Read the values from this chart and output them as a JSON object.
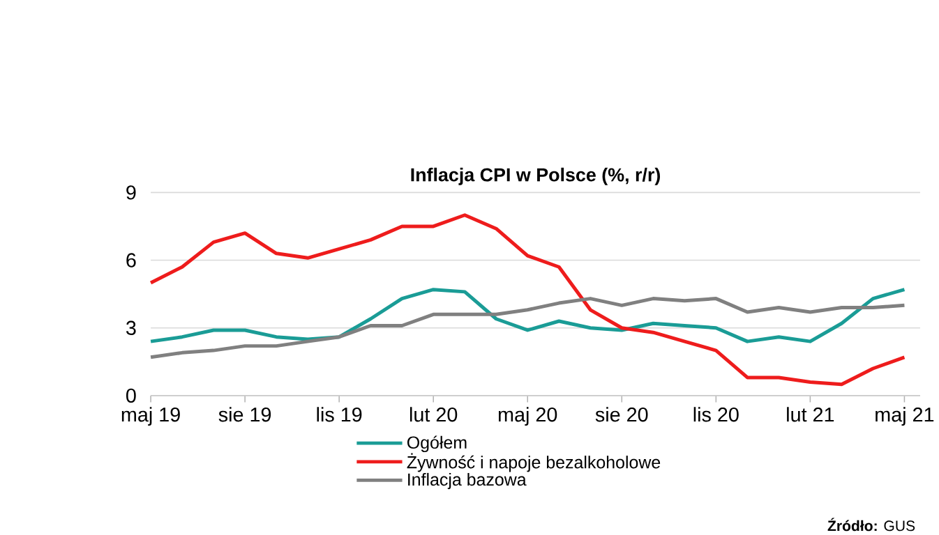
{
  "chart_data": {
    "type": "line",
    "title": "Inflacja CPI w Polsce (%, r/r)",
    "categories": [
      "maj 19",
      null,
      null,
      "sie 19",
      null,
      null,
      "lis 19",
      null,
      null,
      "lut 20",
      null,
      null,
      "maj 20",
      null,
      null,
      "sie 20",
      null,
      null,
      "lis 20",
      null,
      null,
      "lut 21",
      null,
      null,
      "maj 21"
    ],
    "series": [
      {
        "name": "Ogółem",
        "color": "#1a9c96",
        "values": [
          2.4,
          2.6,
          2.9,
          2.9,
          2.6,
          2.5,
          2.6,
          3.4,
          4.3,
          4.7,
          4.6,
          3.4,
          2.9,
          3.3,
          3.0,
          2.9,
          3.2,
          3.1,
          3.0,
          2.4,
          2.6,
          2.4,
          3.2,
          4.3,
          4.7
        ]
      },
      {
        "name": "Żywność i napoje bezalkoholowe",
        "color": "#ee1c1c",
        "values": [
          5.0,
          5.7,
          6.8,
          7.2,
          6.3,
          6.1,
          6.5,
          6.9,
          7.5,
          7.5,
          8.0,
          7.4,
          6.2,
          5.7,
          3.8,
          3.0,
          2.8,
          2.4,
          2.0,
          0.8,
          0.8,
          0.6,
          0.5,
          1.2,
          1.7
        ]
      },
      {
        "name": "Inflacja bazowa",
        "color": "#808080",
        "values": [
          1.7,
          1.9,
          2.0,
          2.2,
          2.2,
          2.4,
          2.6,
          3.1,
          3.1,
          3.6,
          3.6,
          3.6,
          3.8,
          4.1,
          4.3,
          4.0,
          4.3,
          4.2,
          4.3,
          3.7,
          3.9,
          3.7,
          3.9,
          3.9,
          4.0
        ]
      }
    ],
    "ylim": [
      0,
      9
    ],
    "yticks": [
      0,
      3,
      6,
      9
    ],
    "grid": "y",
    "legend": "bottom",
    "marker": "none",
    "line_style": "solid",
    "annotations": [
      "**Źródło:** GUS"
    ]
  }
}
